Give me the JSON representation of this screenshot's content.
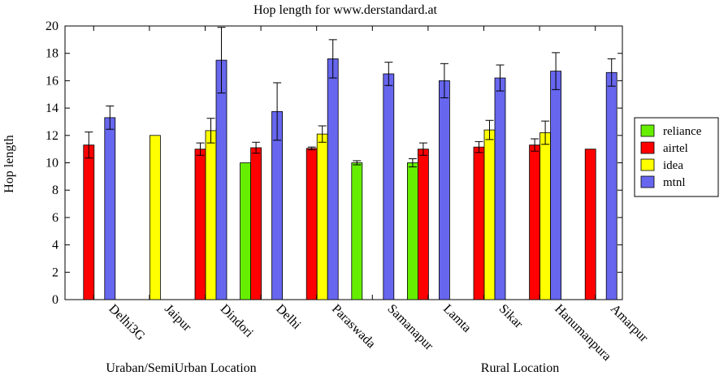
{
  "chart_data": {
    "type": "bar",
    "title": "Hop length for www.derstandard.at",
    "ylabel": "Hop length",
    "xlabel": "",
    "ylim": [
      0,
      20
    ],
    "yticks": [
      0,
      2,
      4,
      6,
      8,
      10,
      12,
      14,
      16,
      18,
      20
    ],
    "grid": false,
    "legend_position": "right",
    "categories": [
      "Delhi3G",
      "Jaipur",
      "Dindori",
      "Delhi",
      "Paraswada",
      "Samanapur",
      "Lamta",
      "Sikar",
      "Hanumanpura",
      "Amarpur"
    ],
    "group_labels": [
      "Uraban/SemiUrban Location",
      "Rural Location"
    ],
    "series": [
      {
        "name": "reliance",
        "color": "#66ee00",
        "values": [
          null,
          null,
          null,
          10.0,
          null,
          10.0,
          10.0,
          null,
          null,
          null
        ],
        "err": [
          null,
          null,
          null,
          0,
          null,
          0.15,
          0.3,
          null,
          null,
          null
        ]
      },
      {
        "name": "airtel",
        "color": "#ff0000",
        "values": [
          11.3,
          null,
          11.0,
          11.1,
          11.05,
          null,
          11.0,
          11.15,
          11.3,
          11.0
        ],
        "err": [
          0.95,
          null,
          0.45,
          0.4,
          0.1,
          null,
          0.45,
          0.4,
          0.45,
          0
        ]
      },
      {
        "name": "idea",
        "color": "#ffff00",
        "values": [
          null,
          12.0,
          12.35,
          null,
          12.1,
          null,
          null,
          12.4,
          12.2,
          null
        ],
        "err": [
          null,
          0,
          0.9,
          null,
          0.6,
          null,
          null,
          0.7,
          0.85,
          null
        ]
      },
      {
        "name": "mtnl",
        "color": "#6666ee",
        "values": [
          13.3,
          null,
          17.5,
          13.75,
          17.6,
          16.5,
          16.0,
          16.2,
          16.7,
          16.6
        ],
        "err": [
          0.85,
          null,
          2.4,
          2.1,
          1.4,
          0.85,
          1.25,
          0.95,
          1.35,
          1.0
        ]
      }
    ]
  }
}
